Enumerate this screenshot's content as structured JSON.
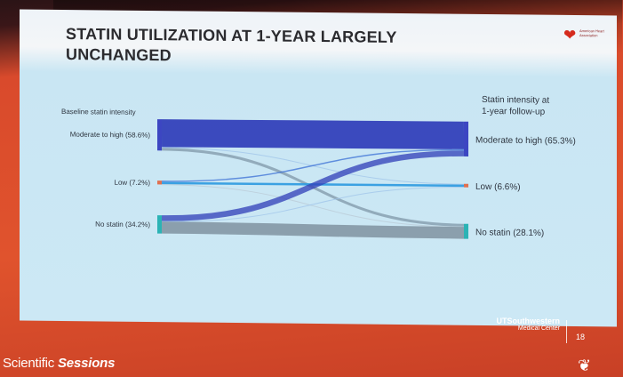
{
  "slide": {
    "title_line1": "STATIN UTILIZATION AT 1-YEAR LARGELY",
    "title_line2": "UNCHANGED",
    "logo_text": "American Heart Association"
  },
  "chart_data": {
    "type": "sankey",
    "left_header": "Baseline statin intensity",
    "right_header_line1": "Statin intensity at",
    "right_header_line2": "1-year follow-up",
    "left_nodes": [
      {
        "id": "mh",
        "label": "Moderate to high (58.6%)",
        "percent": 58.6,
        "color": "#3c46c2"
      },
      {
        "id": "low",
        "label": "Low (7.2%)",
        "percent": 7.2,
        "color": "#e07050"
      },
      {
        "id": "none",
        "label": "No statin (34.2%)",
        "percent": 34.2,
        "color": "#2bb3b5"
      }
    ],
    "right_nodes": [
      {
        "id": "mh",
        "label": "Moderate to high (65.3%)",
        "percent": 65.3,
        "color": "#3c46c2"
      },
      {
        "id": "low",
        "label": "Low (6.6%)",
        "percent": 6.6,
        "color": "#e07050"
      },
      {
        "id": "none",
        "label": "No statin (28.1%)",
        "percent": 28.1,
        "color": "#2bb3b5"
      }
    ],
    "flows": [
      {
        "from": "mh",
        "to": "mh",
        "value": 52.0,
        "color": "#2f3db8"
      },
      {
        "from": "mh",
        "to": "low",
        "value": 1.5,
        "color": "#9fc4ea"
      },
      {
        "from": "mh",
        "to": "none",
        "value": 5.1,
        "color": "#7f97a8"
      },
      {
        "from": "low",
        "to": "mh",
        "value": 2.4,
        "color": "#3a6fd6"
      },
      {
        "from": "low",
        "to": "low",
        "value": 4.2,
        "color": "#2f9be0"
      },
      {
        "from": "low",
        "to": "none",
        "value": 0.6,
        "color": "#b9cad6"
      },
      {
        "from": "none",
        "to": "mh",
        "value": 10.9,
        "color": "#2f3db8"
      },
      {
        "from": "none",
        "to": "low",
        "value": 0.9,
        "color": "#9fc4ea"
      },
      {
        "from": "none",
        "to": "none",
        "value": 22.4,
        "color": "#8599a6"
      }
    ]
  },
  "footer": {
    "brand_line1": "UTSouthwestern",
    "brand_line2": "Medical Center",
    "page_number": "18",
    "conference_part1": "Scientific",
    "conference_part2": "Sessions"
  }
}
